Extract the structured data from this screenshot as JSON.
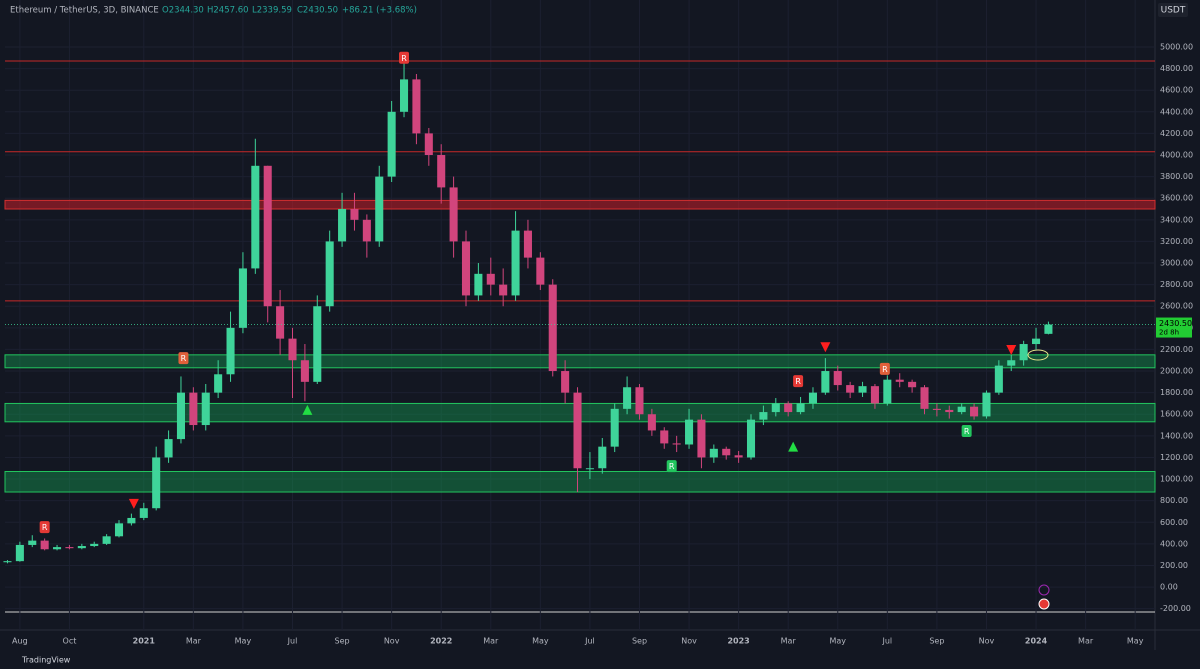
{
  "header": {
    "symbol": "Ethereum / TetherUS, 3D, BINANCE",
    "open": "O2344.30",
    "high": "H2457.60",
    "low": "L2339.59",
    "close": "C2430.50",
    "change": "+86.21 (+3.68%)"
  },
  "footer": "TradingView",
  "chart_data": {
    "type": "candlestick",
    "currency": "USDT",
    "price_label": {
      "value": 2430.5,
      "label": "2430.50",
      "countdown": "2d 8h"
    },
    "up_color": "#3fd49a",
    "down_color": "#d1457d",
    "xlim": [
      0.4,
      46.8
    ],
    "ylim": [
      -490,
      5435
    ],
    "grid": true,
    "xticks": [
      {
        "value": 1,
        "label": "Aug"
      },
      {
        "value": 3,
        "label": "Oct"
      },
      {
        "value": 6,
        "label": "2021"
      },
      {
        "value": 8,
        "label": "Mar"
      },
      {
        "value": 10,
        "label": "May"
      },
      {
        "value": 12,
        "label": "Jul"
      },
      {
        "value": 14,
        "label": "Sep"
      },
      {
        "value": 16,
        "label": "Nov"
      },
      {
        "value": 18,
        "label": "2022"
      },
      {
        "value": 20,
        "label": "Mar"
      },
      {
        "value": 22,
        "label": "May"
      },
      {
        "value": 24,
        "label": "Jul"
      },
      {
        "value": 26,
        "label": "Sep"
      },
      {
        "value": 28,
        "label": "Nov"
      },
      {
        "value": 30,
        "label": "2023"
      },
      {
        "value": 32,
        "label": "Mar"
      },
      {
        "value": 34,
        "label": "May"
      },
      {
        "value": 36,
        "label": "Jul"
      },
      {
        "value": 38,
        "label": "Sep"
      },
      {
        "value": 40,
        "label": "Nov"
      },
      {
        "value": 42,
        "label": "2024"
      },
      {
        "value": 44,
        "label": "Mar"
      },
      {
        "value": 46,
        "label": "May"
      }
    ],
    "yticks": [
      {
        "value": -200,
        "label": "-200.00"
      },
      {
        "value": 0,
        "label": "0.00"
      },
      {
        "value": 200,
        "label": "200.00"
      },
      {
        "value": 400,
        "label": "400.00"
      },
      {
        "value": 600,
        "label": "600.00"
      },
      {
        "value": 800,
        "label": "800.00"
      },
      {
        "value": 1000,
        "label": "1000.00"
      },
      {
        "value": 1200,
        "label": "1200.00"
      },
      {
        "value": 1400,
        "label": "1400.00"
      },
      {
        "value": 1600,
        "label": "1600.00"
      },
      {
        "value": 1800,
        "label": "1800.00"
      },
      {
        "value": 2000,
        "label": "2000.00"
      },
      {
        "value": 2200,
        "label": "2200.00"
      },
      {
        "value": 2400,
        "label": "2400.00"
      },
      {
        "value": 2600,
        "label": "2600.00"
      },
      {
        "value": 2800,
        "label": "2800.00"
      },
      {
        "value": 3000,
        "label": "3000.00"
      },
      {
        "value": 3200,
        "label": "3200.00"
      },
      {
        "value": 3400,
        "label": "3400.00"
      },
      {
        "value": 3600,
        "label": "3600.00"
      },
      {
        "value": 3800,
        "label": "3800.00"
      },
      {
        "value": 4000,
        "label": "4000.00"
      },
      {
        "value": 4200,
        "label": "4200.00"
      },
      {
        "value": 4400,
        "label": "4400.00"
      },
      {
        "value": 4600,
        "label": "4600.00"
      },
      {
        "value": 4800,
        "label": "4800.00"
      },
      {
        "value": 5000,
        "label": "5000.00"
      }
    ],
    "x": [
      0.5,
      1,
      1.5,
      2,
      2.5,
      3,
      3.5,
      4,
      4.5,
      5,
      5.5,
      6,
      6.5,
      7,
      7.5,
      8,
      8.5,
      9,
      9.5,
      10,
      10.5,
      11,
      11.5,
      12,
      12.5,
      13,
      13.5,
      14,
      14.5,
      15,
      15.5,
      16,
      16.5,
      17,
      17.5,
      18,
      18.5,
      19,
      19.5,
      20,
      20.5,
      21,
      21.5,
      22,
      22.5,
      23,
      23.5,
      24,
      24.5,
      25,
      25.5,
      26,
      26.5,
      27,
      27.5,
      28,
      28.5,
      29,
      29.5,
      30,
      30.5,
      31,
      31.5,
      32,
      32.5,
      33,
      33.5,
      34,
      34.5,
      35,
      35.5,
      36,
      36.5,
      37,
      37.5,
      38,
      38.5,
      39,
      39.5,
      40,
      40.5,
      41,
      41.5,
      42,
      42.5
    ],
    "open": [
      230,
      240,
      390,
      430,
      350,
      370,
      360,
      380,
      400,
      470,
      590,
      640,
      730,
      1200,
      1370,
      1800,
      1500,
      1800,
      1970,
      2400,
      2950,
      3900,
      2600,
      2300,
      2100,
      1900,
      2600,
      3200,
      3500,
      3400,
      3200,
      3800,
      4400,
      4700,
      4200,
      4000,
      3700,
      3200,
      2700,
      2900,
      2800,
      2700,
      3300,
      3050,
      2800,
      2000,
      1800,
      1100,
      1100,
      1300,
      1650,
      1850,
      1600,
      1450,
      1330,
      1320,
      1550,
      1200,
      1280,
      1220,
      1200,
      1550,
      1620,
      1700,
      1620,
      1700,
      1800,
      2000,
      1870,
      1800,
      1860,
      1700,
      1920,
      1900,
      1850,
      1650,
      1640,
      1620,
      1670,
      1580,
      1800,
      2050,
      2100,
      2250,
      2344.3
    ],
    "high": [
      250,
      420,
      480,
      450,
      390,
      390,
      400,
      420,
      490,
      620,
      680,
      780,
      1300,
      1450,
      1950,
      1850,
      1880,
      2100,
      2550,
      3100,
      4150,
      3900,
      2750,
      2400,
      2250,
      2700,
      3300,
      3650,
      3650,
      3450,
      3900,
      4500,
      4870,
      4750,
      4250,
      4100,
      3800,
      3300,
      3000,
      3050,
      2950,
      3480,
      3400,
      3100,
      2850,
      2100,
      1850,
      1250,
      1380,
      1700,
      1950,
      1880,
      1650,
      1480,
      1400,
      1650,
      1600,
      1320,
      1300,
      1260,
      1600,
      1680,
      1750,
      1720,
      1760,
      1850,
      2120,
      2050,
      1900,
      1900,
      1880,
      1960,
      1980,
      1920,
      1870,
      1700,
      1680,
      1700,
      1700,
      1820,
      2100,
      2150,
      2280,
      2400,
      2457.6
    ],
    "low": [
      220,
      235,
      370,
      340,
      340,
      350,
      350,
      370,
      390,
      460,
      570,
      620,
      710,
      1150,
      1330,
      1450,
      1450,
      1750,
      1900,
      2350,
      2900,
      2450,
      2150,
      1750,
      1720,
      1880,
      2550,
      3150,
      3300,
      3050,
      3150,
      3750,
      4350,
      4100,
      3900,
      3550,
      3050,
      2600,
      2650,
      2700,
      2600,
      2650,
      2950,
      2750,
      1950,
      1700,
      880,
      1000,
      1050,
      1250,
      1600,
      1550,
      1400,
      1280,
      1250,
      1280,
      1100,
      1150,
      1180,
      1150,
      1180,
      1500,
      1580,
      1580,
      1600,
      1650,
      1780,
      1820,
      1750,
      1760,
      1650,
      1680,
      1850,
      1800,
      1600,
      1580,
      1560,
      1600,
      1550,
      1560,
      1780,
      2000,
      2050,
      2200,
      2339.59
    ],
    "close": [
      240,
      390,
      430,
      350,
      370,
      360,
      380,
      400,
      470,
      590,
      640,
      730,
      1200,
      1370,
      1800,
      1500,
      1800,
      1970,
      2400,
      2950,
      3900,
      2600,
      2300,
      2100,
      1900,
      2600,
      3200,
      3500,
      3400,
      3200,
      3800,
      4400,
      4700,
      4200,
      4000,
      3700,
      3200,
      2700,
      2900,
      2800,
      2700,
      3300,
      3050,
      2800,
      2000,
      1800,
      1100,
      1100,
      1300,
      1650,
      1850,
      1600,
      1450,
      1330,
      1320,
      1550,
      1200,
      1280,
      1220,
      1200,
      1550,
      1620,
      1700,
      1620,
      1700,
      1800,
      2000,
      1870,
      1800,
      1860,
      1700,
      1920,
      1900,
      1850,
      1650,
      1640,
      1620,
      1670,
      1580,
      1800,
      2050,
      2100,
      2250,
      2300,
      2430.5
    ],
    "resistance_lines": [
      4870,
      4030,
      2650
    ],
    "resistance_zones": [
      {
        "low": 3500,
        "high": 3580
      }
    ],
    "support_zones": [
      {
        "low": 2030,
        "high": 2150
      },
      {
        "low": 1530,
        "high": 1700
      },
      {
        "low": 880,
        "high": 1070
      }
    ],
    "signals": [
      {
        "x": 2.0,
        "price": 555,
        "kind": "box",
        "text": "R",
        "color": "#e53935"
      },
      {
        "x": 7.6,
        "price": 2120,
        "kind": "box",
        "text": "R",
        "color": "#e0603a"
      },
      {
        "x": 16.5,
        "price": 4900,
        "kind": "box",
        "text": "R",
        "color": "#e53935"
      },
      {
        "x": 32.4,
        "price": 1907,
        "kind": "box",
        "text": "R",
        "color": "#e53935"
      },
      {
        "x": 35.9,
        "price": 2020,
        "kind": "box",
        "text": "R",
        "color": "#e0603a"
      },
      {
        "x": 27.3,
        "price": 1120,
        "kind": "box",
        "text": "R",
        "color": "#22c55e"
      },
      {
        "x": 39.2,
        "price": 1445,
        "kind": "box",
        "text": "R",
        "color": "#22c55e"
      },
      {
        "x": 5.6,
        "price": 770,
        "kind": "down",
        "color": "#ff1f1f"
      },
      {
        "x": 33.5,
        "price": 2220,
        "kind": "down",
        "color": "#ff1f1f"
      },
      {
        "x": 41.0,
        "price": 2195,
        "kind": "down",
        "color": "#ff1f1f"
      },
      {
        "x": 12.6,
        "price": 1640,
        "kind": "up",
        "color": "#22dd44"
      },
      {
        "x": 32.2,
        "price": 1300,
        "kind": "up",
        "color": "#22dd44"
      }
    ]
  }
}
